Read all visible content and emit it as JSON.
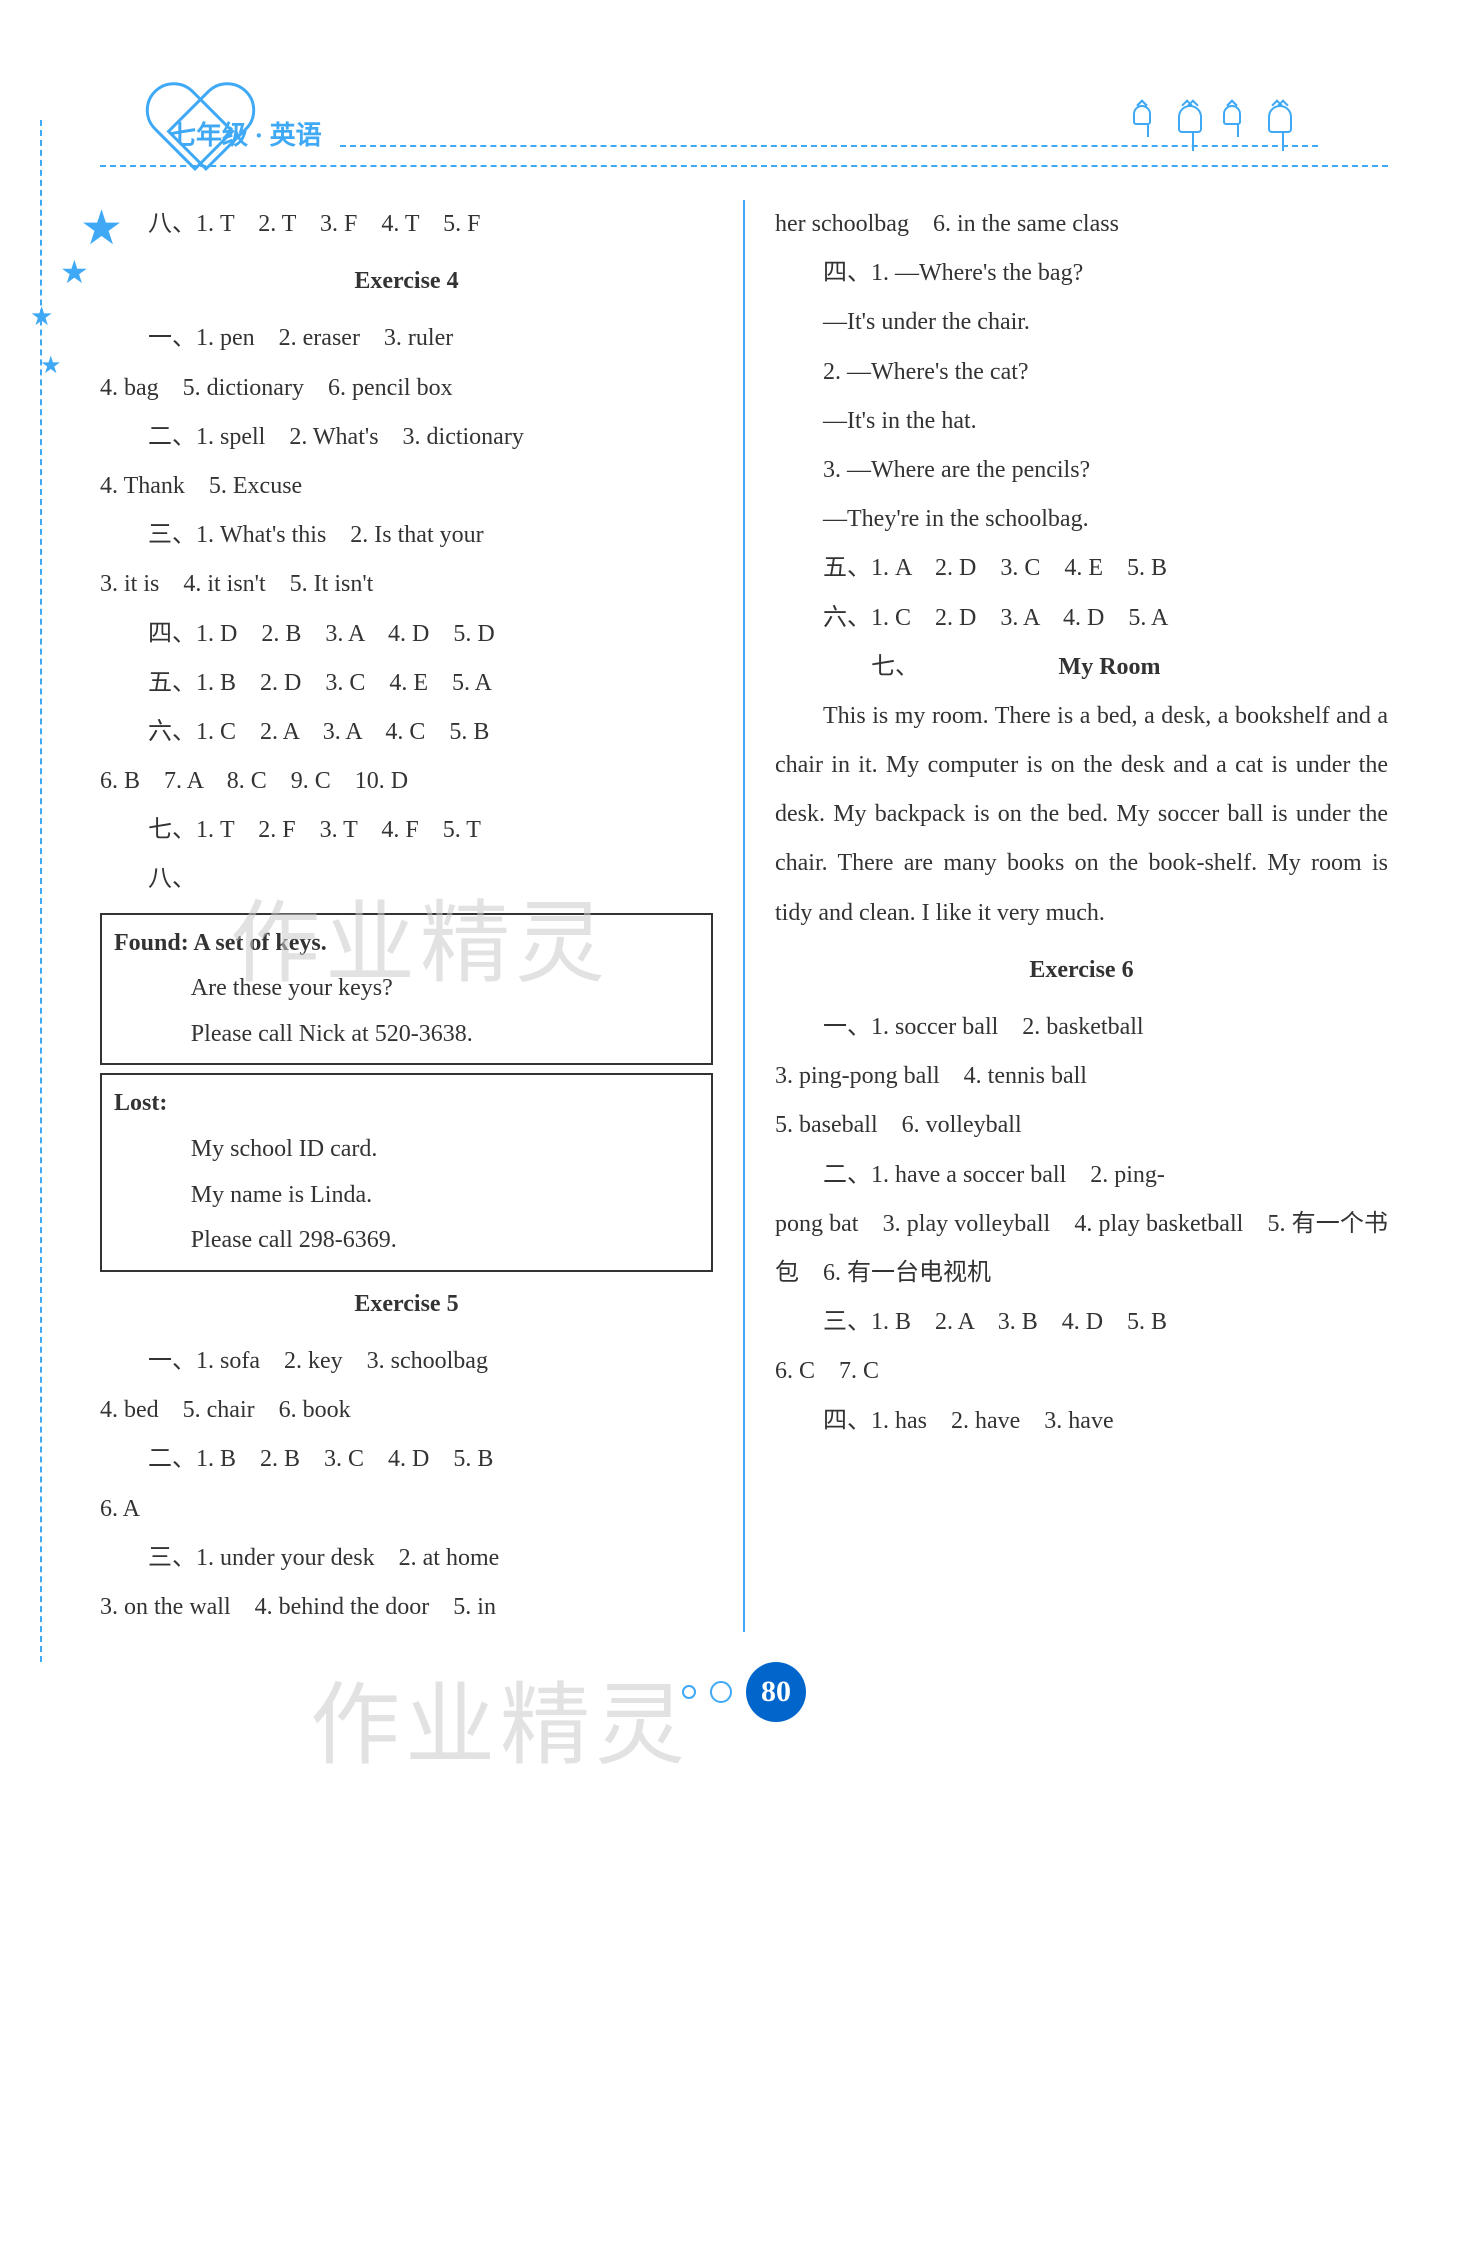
{
  "header": {
    "grade_label": "七年级 · 英语"
  },
  "watermark_text": "作业精灵",
  "page_number": "80",
  "left_column": {
    "line_8": "八、1. T　2. T　3. F　4. T　5. F",
    "ex4_title": "Exercise 4",
    "ex4_1_first": "一、1. pen　2. eraser　3. ruler",
    "ex4_1_cont": "4. bag　5. dictionary　6. pencil box",
    "ex4_2_first": "二、1. spell　2. What's　3. dictionary",
    "ex4_2_cont": "4. Thank　5. Excuse",
    "ex4_3_first": "三、1. What's this　2. Is that your",
    "ex4_3_cont": "3. it is　4. it isn't　5. It isn't",
    "ex4_4": "四、1. D　2. B　3. A　4. D　5. D",
    "ex4_5": "五、1. B　2. D　3. C　4. E　5. A",
    "ex4_6_first": "六、1. C　2. A　3. A　4. C　5. B",
    "ex4_6_cont": "6. B　7. A　8. C　9. C　10. D",
    "ex4_7": "七、1. T　2. F　3. T　4. F　5. T",
    "ex4_8": "八、",
    "found_l1": "Found: A set of keys.",
    "found_l2": "Are these your keys?",
    "found_l3": "Please call Nick at 520-3638.",
    "lost_l1": "Lost:",
    "lost_l2": "My school ID card.",
    "lost_l3": "My name is Linda.",
    "lost_l4": "Please call 298-6369.",
    "ex5_title": "Exercise 5",
    "ex5_1_first": "一、1. sofa　2. key　3. schoolbag",
    "ex5_1_cont": "4. bed　5. chair　6. book",
    "ex5_2_first": "二、1. B　2. B　3. C　4. D　5. B",
    "ex5_2_cont": "6. A",
    "ex5_3_first": "三、1. under your desk　2. at home",
    "ex5_3_cont": "3. on the wall　4. behind the door　5. in"
  },
  "right_column": {
    "ex5_3_cont2": "her schoolbag　6. in the same class",
    "ex5_4_q1a": "四、1. —Where's the bag?",
    "ex5_4_q1b": "—It's under the chair.",
    "ex5_4_q2a": "2. —Where's the cat?",
    "ex5_4_q2b": "—It's in the hat.",
    "ex5_4_q3a": "3. —Where are the pencils?",
    "ex5_4_q3b": "—They're in the schoolbag.",
    "ex5_5": "五、1. A　2. D　3. C　4. E　5. B",
    "ex5_6": "六、1. C　2. D　3. A　4. D　5. A",
    "ex5_7_label": "七、",
    "ex5_7_title": "My Room",
    "essay_p1": "This is my room. There is a bed, a desk, a bookshelf and a chair in it. My computer is on the desk and a cat is under the desk. My backpack is on the bed. My soccer ball is under the chair. There are many books on the book-shelf. My room is tidy and clean. I like it very much.",
    "ex6_title": "Exercise 6",
    "ex6_1_first": "一、1. soccer ball　2. basketball",
    "ex6_1_l2": "3. ping-pong ball　4. tennis ball",
    "ex6_1_l3": "5. baseball　6. volleyball",
    "ex6_2_first": "二、1. have a soccer ball　2. ping-",
    "ex6_2_cont": "pong bat　3. play volleyball　4. play basketball　5. 有一个书包　6. 有一台电视机",
    "ex6_3_first": "三、1. B　2. A　3. B　4. D　5. B",
    "ex6_3_cont": "6. C　7. C",
    "ex6_4": "四、1. has　2. have　3. have"
  }
}
